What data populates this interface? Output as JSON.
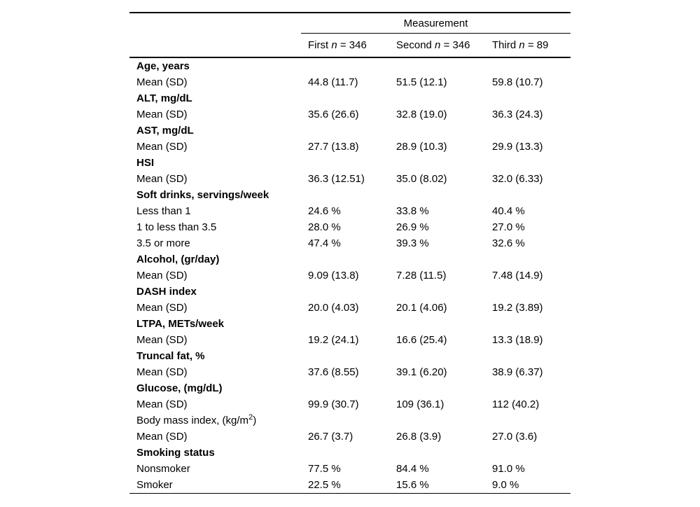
{
  "table": {
    "group_header": "Measurement",
    "columns": [
      {
        "name": "First",
        "n": "n",
        "count": "= 346"
      },
      {
        "name": "Second",
        "n": "n",
        "count": "= 346"
      },
      {
        "name": "Third",
        "n": "n",
        "count": "= 89"
      }
    ],
    "rows": [
      {
        "label": "Age, years",
        "bold": true,
        "values": [
          "",
          "",
          ""
        ]
      },
      {
        "label": "Mean (SD)",
        "bold": false,
        "values": [
          "44.8 (11.7)",
          "51.5 (12.1)",
          "59.8 (10.7)"
        ]
      },
      {
        "label": "ALT, mg/dL",
        "bold": true,
        "values": [
          "",
          "",
          ""
        ]
      },
      {
        "label": "Mean (SD)",
        "bold": false,
        "values": [
          "35.6 (26.6)",
          "32.8 (19.0)",
          "36.3 (24.3)"
        ]
      },
      {
        "label": "AST, mg/dL",
        "bold": true,
        "values": [
          "",
          "",
          ""
        ]
      },
      {
        "label": "Mean (SD)",
        "bold": false,
        "values": [
          "27.7 (13.8)",
          "28.9 (10.3)",
          "29.9 (13.3)"
        ]
      },
      {
        "label": "HSI",
        "bold": true,
        "values": [
          "",
          "",
          ""
        ]
      },
      {
        "label": "Mean (SD)",
        "bold": false,
        "values": [
          "36.3 (12.51)",
          "35.0 (8.02)",
          "32.0 (6.33)"
        ]
      },
      {
        "label": "Soft drinks, servings/week",
        "bold": true,
        "values": [
          "",
          "",
          ""
        ]
      },
      {
        "label": "Less than 1",
        "bold": false,
        "values": [
          "24.6 %",
          "33.8 %",
          "40.4 %"
        ]
      },
      {
        "label": "1 to less than 3.5",
        "bold": false,
        "values": [
          "28.0 %",
          "26.9 %",
          "27.0 %"
        ]
      },
      {
        "label": "3.5 or more",
        "bold": false,
        "values": [
          "47.4 %",
          "39.3 %",
          "32.6 %"
        ]
      },
      {
        "label": "Alcohol, (gr/day)",
        "bold": true,
        "values": [
          "",
          "",
          ""
        ]
      },
      {
        "label": "Mean (SD)",
        "bold": false,
        "values": [
          "9.09 (13.8)",
          "7.28 (11.5)",
          "7.48 (14.9)"
        ]
      },
      {
        "label": "DASH index",
        "bold": true,
        "values": [
          "",
          "",
          ""
        ]
      },
      {
        "label": "Mean (SD)",
        "bold": false,
        "values": [
          "20.0 (4.03)",
          "20.1 (4.06)",
          "19.2 (3.89)"
        ]
      },
      {
        "label": "LTPA, METs/week",
        "bold": true,
        "values": [
          "",
          "",
          ""
        ]
      },
      {
        "label": "Mean (SD)",
        "bold": false,
        "values": [
          "19.2 (24.1)",
          "16.6 (25.4)",
          "13.3 (18.9)"
        ]
      },
      {
        "label": "Truncal fat, %",
        "bold": true,
        "values": [
          "",
          "",
          ""
        ]
      },
      {
        "label": "Mean (SD)",
        "bold": false,
        "values": [
          "37.6 (8.55)",
          "39.1 (6.20)",
          "38.9 (6.37)"
        ]
      },
      {
        "label": "Glucose, (mg/dL)",
        "bold": true,
        "values": [
          "",
          "",
          ""
        ]
      },
      {
        "label": "Mean (SD)",
        "bold": false,
        "values": [
          "99.9 (30.7)",
          "109 (36.1)",
          "112 (40.2)"
        ]
      },
      {
        "label": "Body mass index, (kg/m",
        "sup": "2",
        "label_end": ")",
        "bold": false,
        "values": [
          "",
          "",
          ""
        ]
      },
      {
        "label": "Mean (SD)",
        "bold": false,
        "values": [
          "26.7 (3.7)",
          "26.8 (3.9)",
          "27.0 (3.6)"
        ]
      },
      {
        "label": "Smoking status",
        "bold": true,
        "values": [
          "",
          "",
          ""
        ]
      },
      {
        "label": "Nonsmoker",
        "bold": false,
        "values": [
          "77.5 %",
          "84.4 %",
          "91.0 %"
        ]
      },
      {
        "label": "Smoker",
        "bold": false,
        "values": [
          "22.5 %",
          "15.6 %",
          "9.0 %"
        ]
      }
    ]
  }
}
